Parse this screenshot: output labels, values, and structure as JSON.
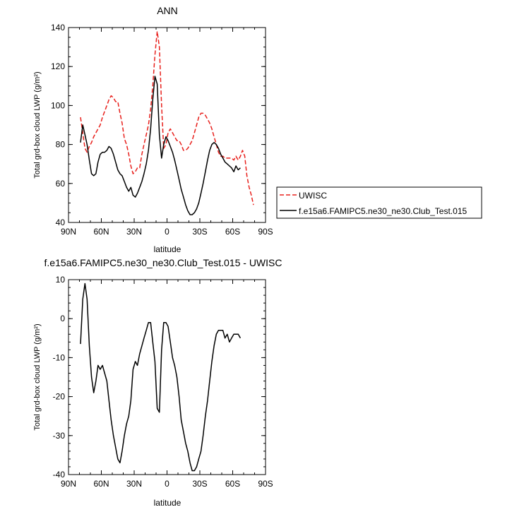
{
  "chart_data": [
    {
      "type": "line",
      "title": "ANN",
      "xlabel": "latitude",
      "ylabel": "Total grd-box cloud LWP (g/m²)",
      "xlim": [
        90,
        -90
      ],
      "ylim": [
        40,
        140
      ],
      "xticks": [
        {
          "value": 90,
          "label": "90N"
        },
        {
          "value": 60,
          "label": "60N"
        },
        {
          "value": 30,
          "label": "30N"
        },
        {
          "value": 0,
          "label": "0"
        },
        {
          "value": -30,
          "label": "30S"
        },
        {
          "value": -60,
          "label": "60S"
        },
        {
          "value": -90,
          "label": "90S"
        }
      ],
      "yticks": [
        40,
        60,
        80,
        100,
        120,
        140
      ],
      "legend_position": "right",
      "series": [
        {
          "name": "UWISC",
          "color": "#e8201c",
          "dash": "dashed",
          "x": [
            79,
            77,
            75,
            73,
            71,
            69,
            67,
            65,
            63,
            61,
            59,
            57,
            55,
            53,
            51,
            49,
            47,
            45,
            43,
            41,
            39,
            37,
            35,
            33,
            31,
            29,
            27,
            25,
            23,
            21,
            19,
            17,
            15,
            13,
            11,
            9,
            7,
            5,
            3,
            1,
            -1,
            -3,
            -5,
            -7,
            -9,
            -11,
            -13,
            -15,
            -17,
            -19,
            -21,
            -23,
            -25,
            -27,
            -29,
            -31,
            -33,
            -35,
            -37,
            -39,
            -41,
            -43,
            -45,
            -47,
            -49,
            -51,
            -53,
            -55,
            -57,
            -59,
            -61,
            -63,
            -65,
            -67,
            -69,
            -71,
            -73,
            -75,
            -77,
            -79
          ],
          "y": [
            94,
            86,
            78,
            76,
            79,
            81,
            84,
            86,
            88,
            90,
            94,
            97,
            100,
            103,
            105,
            104,
            102,
            102,
            96,
            91,
            83,
            80,
            75,
            69,
            65,
            66,
            68,
            68,
            75,
            80,
            85,
            90,
            98,
            110,
            126,
            138,
            130,
            100,
            78,
            80,
            86,
            88,
            86,
            84,
            82,
            82,
            80,
            77,
            77,
            78,
            80,
            82,
            86,
            90,
            94,
            96,
            96,
            95,
            93,
            91,
            88,
            84,
            80,
            76,
            74,
            74,
            73,
            73,
            73,
            73,
            72,
            74,
            72,
            74,
            77,
            74,
            64,
            58,
            54,
            49
          ]
        },
        {
          "name": "f.e15a6.FAMIPC5.ne30_ne30.Club_Test.015",
          "color": "#000000",
          "dash": "solid",
          "x": [
            79,
            77,
            75,
            73,
            71,
            69,
            67,
            65,
            63,
            61,
            59,
            57,
            55,
            53,
            51,
            49,
            47,
            45,
            43,
            41,
            39,
            37,
            35,
            33,
            31,
            29,
            27,
            25,
            23,
            21,
            19,
            17,
            15,
            13,
            11,
            9,
            7,
            5,
            3,
            1,
            -1,
            -3,
            -5,
            -7,
            -9,
            -11,
            -13,
            -15,
            -17,
            -19,
            -21,
            -23,
            -25,
            -27,
            -29,
            -31,
            -33,
            -35,
            -37,
            -39,
            -41,
            -43,
            -45,
            -47,
            -49,
            -51,
            -53,
            -55,
            -57,
            -59,
            -61,
            -63,
            -65,
            -67
          ],
          "y": [
            81,
            90,
            85,
            80,
            72,
            65,
            64,
            65,
            71,
            75,
            76,
            76,
            77,
            79,
            78,
            75,
            71,
            67,
            65,
            64,
            61,
            58,
            56,
            58,
            54,
            53,
            55,
            58,
            61,
            65,
            70,
            77,
            88,
            103,
            115,
            111,
            85,
            73,
            80,
            84,
            82,
            79,
            76,
            72,
            67,
            62,
            57,
            53,
            49,
            46,
            44,
            44,
            45,
            47,
            50,
            55,
            60,
            66,
            72,
            77,
            80,
            81,
            80,
            78,
            75,
            73,
            71,
            70,
            69,
            68,
            66,
            69,
            67,
            68
          ]
        }
      ]
    },
    {
      "type": "line",
      "title": "f.e15a6.FAMIPC5.ne30_ne30.Club_Test.015 - UWISC",
      "xlabel": "latitude",
      "ylabel": "Total grd-box cloud LWP (g/m²)",
      "xlim": [
        90,
        -90
      ],
      "ylim": [
        -40,
        10
      ],
      "xticks": [
        {
          "value": 90,
          "label": "90N"
        },
        {
          "value": 60,
          "label": "60N"
        },
        {
          "value": 30,
          "label": "30N"
        },
        {
          "value": 0,
          "label": "0"
        },
        {
          "value": -30,
          "label": "30S"
        },
        {
          "value": -60,
          "label": "60S"
        },
        {
          "value": -90,
          "label": "90S"
        }
      ],
      "yticks": [
        -40,
        -30,
        -20,
        -10,
        0,
        10
      ],
      "series": [
        {
          "color": "#000000",
          "dash": "solid",
          "x": [
            79,
            77,
            75,
            73,
            71,
            69,
            67,
            65,
            63,
            61,
            59,
            57,
            55,
            53,
            51,
            49,
            47,
            45,
            43,
            41,
            39,
            37,
            35,
            33,
            31,
            29,
            27,
            25,
            23,
            21,
            19,
            17,
            15,
            13,
            11,
            9,
            7,
            5,
            3,
            1,
            -1,
            -3,
            -5,
            -7,
            -9,
            -11,
            -13,
            -15,
            -17,
            -19,
            -21,
            -23,
            -25,
            -27,
            -29,
            -31,
            -33,
            -35,
            -37,
            -39,
            -41,
            -43,
            -45,
            -47,
            -49,
            -51,
            -53,
            -55,
            -57,
            -59,
            -61,
            -63,
            -65,
            -67
          ],
          "y": [
            -6.5,
            5,
            9,
            5,
            -7,
            -15,
            -19,
            -16,
            -12,
            -13,
            -12,
            -14,
            -16,
            -21,
            -26,
            -30,
            -33,
            -36,
            -37,
            -34,
            -30,
            -27,
            -25,
            -21,
            -13,
            -11,
            -12,
            -9,
            -7,
            -5,
            -3,
            -1,
            -1,
            -6,
            -11,
            -23,
            -24,
            -8,
            -1,
            -1,
            -2,
            -6,
            -10,
            -12,
            -15,
            -20,
            -26,
            -29,
            -32,
            -34,
            -37,
            -39,
            -39,
            -38,
            -36,
            -34,
            -30,
            -25,
            -21,
            -16,
            -11,
            -7,
            -4,
            -3,
            -3,
            -3,
            -5,
            -4,
            -6,
            -5,
            -4,
            -4,
            -4,
            -5
          ]
        }
      ]
    }
  ]
}
